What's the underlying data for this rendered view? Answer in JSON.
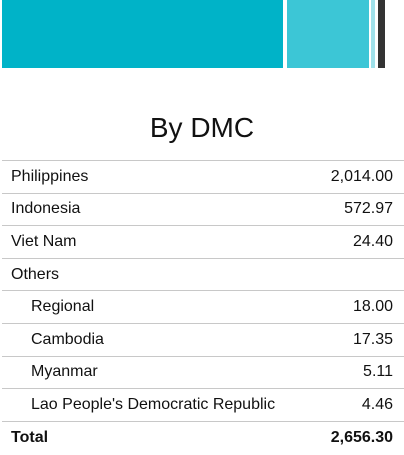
{
  "bar": {
    "segments": [
      {
        "name": "Philippines",
        "color": "#00b3c8"
      },
      {
        "name": "Indonesia",
        "color": "#3cc6d6"
      },
      {
        "name": "Viet Nam",
        "color": "#9fe1ea"
      },
      {
        "name": "Others",
        "color": "#333333"
      }
    ]
  },
  "title": "By DMC",
  "rows": [
    {
      "label": "Philippines",
      "value": "2,014.00"
    },
    {
      "label": "Indonesia",
      "value": "572.97"
    },
    {
      "label": "Viet Nam",
      "value": "24.40"
    },
    {
      "label": "Others",
      "value": ""
    },
    {
      "label": "Regional",
      "value": "18.00"
    },
    {
      "label": "Cambodia",
      "value": "17.35"
    },
    {
      "label": "Myanmar",
      "value": "5.11"
    },
    {
      "label": "Lao People's Democratic Republic",
      "value": "4.46"
    }
  ],
  "total": {
    "label": "Total",
    "value": "2,656.30"
  }
}
